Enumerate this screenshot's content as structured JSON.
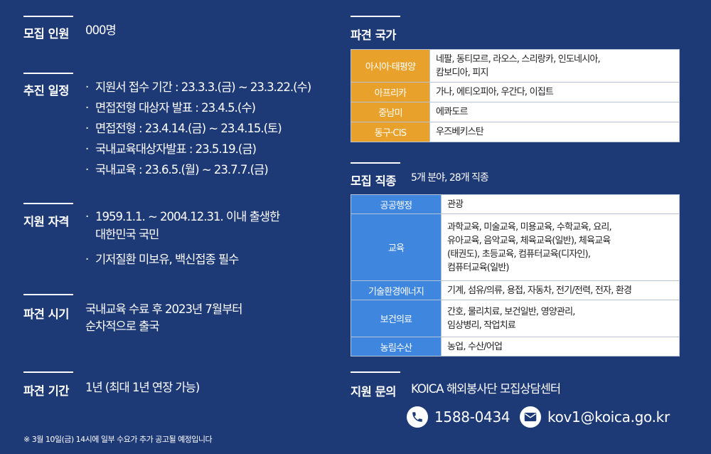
{
  "left": {
    "recruit_count": {
      "title": "모집 인원",
      "value": "000명"
    },
    "schedule": {
      "title": "추진 일정",
      "items": [
        "지원서 접수 기간 : 23.3.3.(금) ~ 23.3.22.(수)",
        "면접전형 대상자 발표 : 23.4.5.(수)",
        "면접전형 : 23.4.14.(금) ~ 23.4.15.(토)",
        "국내교육대상자발표 : 23.5.19.(금)",
        "국내교육 : 23.6.5.(월) ~ 23.7.7.(금)"
      ]
    },
    "qualification": {
      "title": "지원 자격",
      "item1_line1": "1959.1.1. ~ 2004.12.31. 이내 출생한",
      "item1_line2": "대한민국 국민",
      "item2": "기저질환 미보유, 백신접종 필수"
    },
    "dispatch_time": {
      "title": "파견 시기",
      "line1": "국내교육 수료 후 2023년 7월부터",
      "line2": "순차적으로 출국"
    },
    "dispatch_period": {
      "title": "파견 기간",
      "value": "1년 (최대 1년 연장 가능)"
    },
    "footnote": "※ 3월 10일(금) 14시에 일부 수요가 추가 공고될 예정입니다"
  },
  "right": {
    "countries": {
      "title": "파견 국가",
      "rows": [
        {
          "region": "아시아·태평양",
          "line1": "네팔, 동티모르, 라오스, 스리랑카, 인도네시아,",
          "line2": "캄보디아, 피지"
        },
        {
          "region": "아프리카",
          "line1": "가나, 에티오피아, 우간다, 이집트"
        },
        {
          "region": "중남미",
          "line1": "에콰도르"
        },
        {
          "region": "동구·CIS",
          "line1": "우즈베키스탄"
        }
      ]
    },
    "jobs": {
      "title": "모집 직종",
      "subtitle": "5개 분야, 28개 직종",
      "rows": [
        {
          "field": "공공행정",
          "lines": [
            "관광"
          ]
        },
        {
          "field": "교육",
          "lines": [
            "과학교육, 미술교육, 미용교육, 수학교육, 요리,",
            "유아교육, 음악교육, 체육교육(일반), 체육교육",
            "(태권도), 초등교육, 컴퓨터교육(디자인),",
            "컴퓨터교육(일반)"
          ]
        },
        {
          "field": "기술환경에너지",
          "lines": [
            "기계, 섬유/의류, 용접, 자동차, 전기/전력, 전자, 환경"
          ]
        },
        {
          "field": "보건의료",
          "lines": [
            "간호, 물리치료, 보건일반, 영양관리,",
            "임상병리, 작업치료"
          ]
        },
        {
          "field": "농림수산",
          "lines": [
            "농업, 수산/어업"
          ]
        }
      ]
    },
    "inquiry": {
      "title": "지원 문의",
      "center": "KOICA 해외봉사단 모집상담센터",
      "phone": "1588-0434",
      "email": "kov1@koica.go.kr"
    }
  },
  "colors": {
    "background": "#1e3a76",
    "region_orange": "#e8a12a",
    "field_blue": "#3f86de"
  },
  "icons": {
    "phone": "phone-icon",
    "email": "mail-icon"
  }
}
